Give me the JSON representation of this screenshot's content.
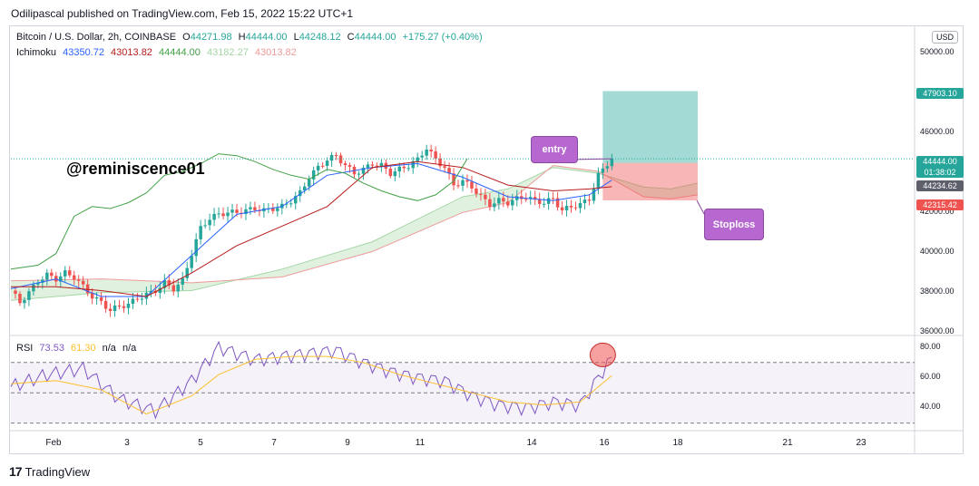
{
  "header": {
    "publish_line": "Odilipascal published on TradingView.com, Feb 15, 2022 15:22 UTC+1"
  },
  "legend": {
    "symbol": "Bitcoin / U.S. Dollar, 2h, COINBASE",
    "open_label": "O",
    "open": "44271.98",
    "high_label": "H",
    "high": "44444.00",
    "low_label": "L",
    "low": "44248.12",
    "close_label": "C",
    "close": "44444.00",
    "change": "+175.27 (+0.40%)",
    "ichimoku_label": "Ichimoku",
    "ichimoku_values": [
      "43350.72",
      "43013.82",
      "44444.00",
      "43182.27",
      "43013.82"
    ],
    "rsi_label": "RSI",
    "rsi_values": [
      "73.53",
      "61.30",
      "n/a",
      "n/a"
    ]
  },
  "currency_badge": "USD",
  "watermark": "@reminiscence01",
  "annotations": {
    "entry": "entry",
    "stoploss": "Stoploss"
  },
  "price_labels": {
    "target": "47903.10",
    "current": "44444.00",
    "countdown": "01:38:02",
    "entry_level": "44234.62",
    "stop_level": "42315.42"
  },
  "colors": {
    "up": "#26a69a",
    "down": "#ef5350",
    "tenkan": "#2962ff",
    "kijun": "#b71c1c",
    "chikou": "#43a047",
    "cloud_bull": "#a5d6a7",
    "cloud_bear": "#f8bbd0",
    "rsi": "#7e57c2",
    "rsi_ma": "#fbc02d",
    "target_zone": "#26a69a",
    "stop_zone": "#ef5350",
    "callout": "#b667d0"
  },
  "footer": {
    "brand": "TradingView"
  },
  "chart_data": {
    "type": "candlestick",
    "title": "Bitcoin / U.S. Dollar, 2h, COINBASE",
    "price_axis_ticks": [
      "50000.00",
      "46000.00",
      "42000.00",
      "40000.00",
      "38000.00",
      "36000.00"
    ],
    "rsi_axis_ticks": [
      "80.00",
      "60.00",
      "40.00"
    ],
    "x_ticks": [
      "Feb",
      "3",
      "5",
      "7",
      "9",
      "11",
      "14",
      "16",
      "18",
      "21",
      "23"
    ],
    "ylim": [
      35500,
      50800
    ],
    "rsi_ylim": [
      28,
      86
    ],
    "close_path": [
      [
        0,
        37700
      ],
      [
        2,
        37100
      ],
      [
        4,
        37600
      ],
      [
        6,
        38200
      ],
      [
        8,
        38500
      ],
      [
        10,
        38300
      ],
      [
        12,
        38600
      ],
      [
        14,
        38400
      ],
      [
        16,
        37900
      ],
      [
        18,
        37400
      ],
      [
        20,
        37100
      ],
      [
        22,
        36700
      ],
      [
        24,
        36900
      ],
      [
        26,
        37000
      ],
      [
        28,
        37300
      ],
      [
        30,
        37500
      ],
      [
        32,
        37700
      ],
      [
        34,
        38100
      ],
      [
        36,
        37800
      ],
      [
        38,
        38200
      ],
      [
        40,
        39600
      ],
      [
        42,
        40900
      ],
      [
        44,
        41400
      ],
      [
        46,
        41600
      ],
      [
        48,
        41700
      ],
      [
        50,
        41700
      ],
      [
        52,
        41800
      ],
      [
        54,
        41900
      ],
      [
        56,
        41800
      ],
      [
        58,
        41900
      ],
      [
        60,
        42000
      ],
      [
        62,
        42300
      ],
      [
        64,
        42700
      ],
      [
        66,
        43500
      ],
      [
        68,
        44000
      ],
      [
        70,
        44400
      ],
      [
        72,
        44600
      ],
      [
        74,
        44100
      ],
      [
        76,
        43700
      ],
      [
        78,
        43900
      ],
      [
        80,
        44200
      ],
      [
        82,
        44100
      ],
      [
        84,
        43700
      ],
      [
        86,
        43900
      ],
      [
        88,
        44100
      ],
      [
        90,
        44400
      ],
      [
        92,
        45000
      ],
      [
        94,
        44400
      ],
      [
        96,
        44000
      ],
      [
        98,
        43100
      ],
      [
        100,
        43300
      ],
      [
        102,
        43000
      ],
      [
        104,
        42500
      ],
      [
        106,
        42100
      ],
      [
        108,
        42300
      ],
      [
        110,
        42200
      ],
      [
        112,
        42400
      ],
      [
        114,
        42500
      ],
      [
        116,
        42300
      ],
      [
        118,
        42200
      ],
      [
        120,
        42400
      ],
      [
        122,
        41800
      ],
      [
        124,
        42000
      ],
      [
        126,
        42100
      ],
      [
        128,
        42400
      ],
      [
        130,
        43600
      ],
      [
        132,
        44200
      ],
      [
        133,
        44444
      ]
    ],
    "ichimoku": {
      "tenkan": [
        [
          0,
          37800
        ],
        [
          10,
          38300
        ],
        [
          20,
          37400
        ],
        [
          30,
          37400
        ],
        [
          40,
          39500
        ],
        [
          50,
          41600
        ],
        [
          60,
          42000
        ],
        [
          70,
          43600
        ],
        [
          80,
          44000
        ],
        [
          90,
          44200
        ],
        [
          100,
          43500
        ],
        [
          110,
          42500
        ],
        [
          120,
          42300
        ],
        [
          128,
          42600
        ],
        [
          133,
          43351
        ]
      ],
      "kijun": [
        [
          0,
          37900
        ],
        [
          10,
          37900
        ],
        [
          20,
          37700
        ],
        [
          30,
          37400
        ],
        [
          40,
          38600
        ],
        [
          50,
          40000
        ],
        [
          60,
          41000
        ],
        [
          70,
          42000
        ],
        [
          80,
          44000
        ],
        [
          90,
          44300
        ],
        [
          100,
          44000
        ],
        [
          110,
          43100
        ],
        [
          120,
          42800
        ],
        [
          128,
          42900
        ],
        [
          133,
          43014
        ]
      ],
      "chikou": [
        [
          0,
          38800
        ],
        [
          6,
          39000
        ],
        [
          10,
          39600
        ],
        [
          14,
          41500
        ],
        [
          18,
          42000
        ],
        [
          22,
          41900
        ],
        [
          26,
          42200
        ],
        [
          30,
          42700
        ],
        [
          34,
          43600
        ],
        [
          38,
          43800
        ],
        [
          42,
          44200
        ],
        [
          46,
          44700
        ],
        [
          50,
          44600
        ],
        [
          54,
          44300
        ],
        [
          58,
          43900
        ],
        [
          62,
          43600
        ],
        [
          66,
          43400
        ],
        [
          70,
          43900
        ],
        [
          74,
          43700
        ],
        [
          78,
          43200
        ],
        [
          82,
          42800
        ],
        [
          86,
          42500
        ],
        [
          90,
          42300
        ],
        [
          94,
          42600
        ],
        [
          98,
          43300
        ],
        [
          101,
          44444
        ]
      ],
      "span_a": [
        [
          0,
          37200
        ],
        [
          20,
          37600
        ],
        [
          40,
          37700
        ],
        [
          60,
          38800
        ],
        [
          80,
          40200
        ],
        [
          100,
          42500
        ],
        [
          110,
          42900
        ],
        [
          120,
          44000
        ],
        [
          130,
          43700
        ],
        [
          140,
          43000
        ],
        [
          146,
          42900
        ],
        [
          152,
          43200
        ]
      ],
      "span_b": [
        [
          0,
          38200
        ],
        [
          20,
          38300
        ],
        [
          40,
          38100
        ],
        [
          60,
          38400
        ],
        [
          80,
          39700
        ],
        [
          100,
          41700
        ],
        [
          110,
          42200
        ],
        [
          120,
          44100
        ],
        [
          130,
          43800
        ],
        [
          140,
          42500
        ],
        [
          146,
          42400
        ],
        [
          152,
          42600
        ]
      ]
    },
    "position": {
      "entry": 44234.62,
      "target": 47903.1,
      "stop": 42315.42
    },
    "rsi": [
      [
        0,
        54
      ],
      [
        8,
        62
      ],
      [
        16,
        66
      ],
      [
        24,
        46
      ],
      [
        32,
        38
      ],
      [
        40,
        58
      ],
      [
        46,
        80
      ],
      [
        54,
        72
      ],
      [
        60,
        74
      ],
      [
        66,
        76
      ],
      [
        72,
        78
      ],
      [
        78,
        70
      ],
      [
        84,
        64
      ],
      [
        90,
        60
      ],
      [
        96,
        58
      ],
      [
        102,
        48
      ],
      [
        108,
        42
      ],
      [
        114,
        40
      ],
      [
        120,
        44
      ],
      [
        126,
        42
      ],
      [
        130,
        60
      ],
      [
        133,
        73.53
      ]
    ],
    "rsi_ma": [
      [
        0,
        56
      ],
      [
        10,
        58
      ],
      [
        20,
        52
      ],
      [
        30,
        36
      ],
      [
        40,
        48
      ],
      [
        46,
        62
      ],
      [
        54,
        72
      ],
      [
        62,
        74
      ],
      [
        70,
        74
      ],
      [
        78,
        70
      ],
      [
        86,
        62
      ],
      [
        94,
        56
      ],
      [
        102,
        50
      ],
      [
        110,
        44
      ],
      [
        118,
        42
      ],
      [
        126,
        44
      ],
      [
        133,
        61.3
      ]
    ],
    "rsi_bands": [
      70,
      50,
      30
    ]
  }
}
